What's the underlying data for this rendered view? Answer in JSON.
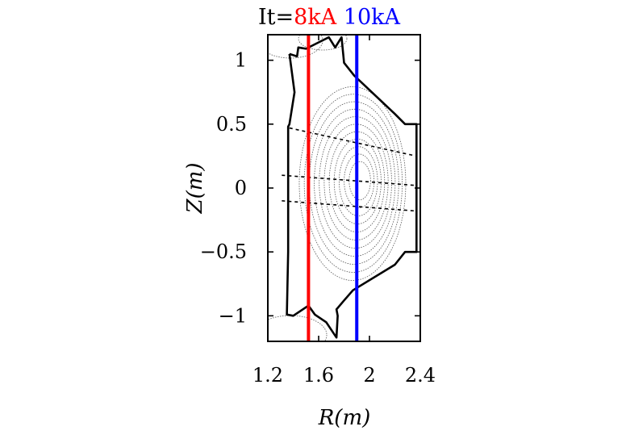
{
  "chart_data": {
    "type": "line",
    "title_parts": [
      {
        "text": "It=",
        "color": "#000000"
      },
      {
        "text": "8kA",
        "color": "#ff0000"
      },
      {
        "text": " ",
        "color": "#000000"
      },
      {
        "text": "10kA",
        "color": "#0000ff"
      }
    ],
    "xlabel": "R(m)",
    "ylabel": "Z(m)",
    "xlim": [
      1.2,
      2.4
    ],
    "ylim": [
      -1.2,
      1.2
    ],
    "xticks": [
      {
        "value": 1.2,
        "label": "1.2"
      },
      {
        "value": 1.6,
        "label": "1.6"
      },
      {
        "value": 2.0,
        "label": "2"
      },
      {
        "value": 2.4,
        "label": "2.4"
      }
    ],
    "yticks": [
      {
        "value": 1.0,
        "label": "1"
      },
      {
        "value": 0.5,
        "label": "0.5"
      },
      {
        "value": 0.0,
        "label": "0"
      },
      {
        "value": -0.5,
        "label": "−0.5"
      },
      {
        "value": -1.0,
        "label": "−1"
      }
    ],
    "vertical_lines": [
      {
        "x": 1.52,
        "color": "#ff0000"
      },
      {
        "x": 1.9,
        "color": "#0000ff"
      }
    ],
    "wall_outline": [
      [
        1.37,
        1.05
      ],
      [
        1.43,
        1.03
      ],
      [
        1.44,
        1.1
      ],
      [
        1.5,
        1.09
      ],
      [
        1.6,
        1.14
      ],
      [
        1.68,
        1.18
      ],
      [
        1.73,
        1.1
      ],
      [
        1.78,
        1.18
      ],
      [
        1.8,
        0.98
      ],
      [
        1.88,
        0.88
      ],
      [
        2.2,
        0.58
      ],
      [
        2.28,
        0.5
      ],
      [
        2.37,
        0.5
      ],
      [
        2.37,
        -0.5
      ],
      [
        2.28,
        -0.5
      ],
      [
        2.2,
        -0.6
      ],
      [
        1.87,
        -0.8
      ],
      [
        1.8,
        -0.88
      ],
      [
        1.74,
        -0.95
      ],
      [
        1.75,
        -1.0
      ],
      [
        1.74,
        -1.17
      ],
      [
        1.66,
        -1.05
      ],
      [
        1.57,
        -0.99
      ],
      [
        1.52,
        -0.92
      ],
      [
        1.4,
        -1.0
      ],
      [
        1.35,
        -0.99
      ],
      [
        1.36,
        -0.5
      ],
      [
        1.36,
        0.0
      ],
      [
        1.36,
        0.48
      ],
      [
        1.37,
        0.5
      ],
      [
        1.41,
        0.75
      ],
      [
        1.37,
        1.05
      ]
    ],
    "dashed_chords": [
      {
        "from": [
          1.37,
          0.47
        ],
        "to": [
          2.37,
          0.25
        ]
      },
      {
        "from": [
          1.31,
          0.1
        ],
        "to": [
          2.37,
          0.02
        ]
      },
      {
        "from": [
          1.31,
          -0.1
        ],
        "to": [
          2.37,
          -0.18
        ]
      }
    ],
    "flux_contours": {
      "center": [
        1.93,
        0.06
      ],
      "count": 11,
      "color": "#555555"
    },
    "grid": false,
    "legend": "none"
  }
}
